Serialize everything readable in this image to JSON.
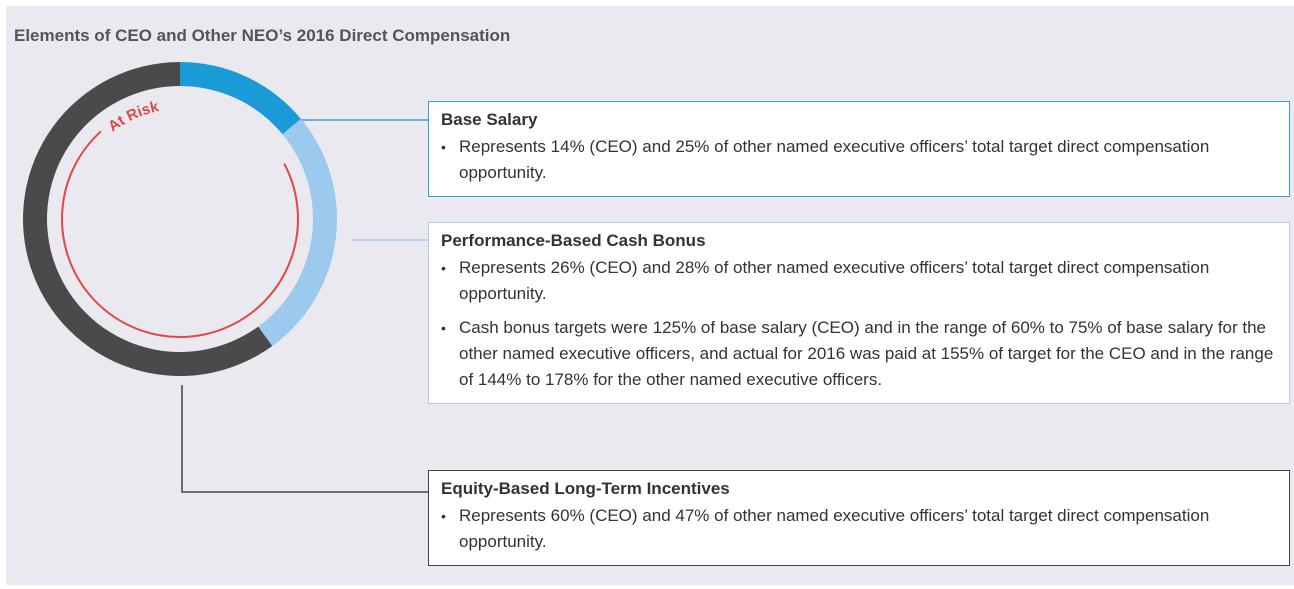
{
  "chart_data": {
    "type": "donut",
    "title": "Elements of CEO and Other NEO’s 2016 Direct Compensation",
    "categories": [
      "Base Salary",
      "Performance-Based Cash Bonus",
      "Equity-Based Long-Term Incentives"
    ],
    "values": [
      14,
      26,
      60
    ],
    "colors": [
      "#1a9ad6",
      "#9cc9ee",
      "#4a4a4a"
    ],
    "annotations": [
      "At Risk"
    ],
    "descriptions": [
      [
        "Represents 14% (CEO) and 25% of other named executive officers’ total target direct compensation opportunity."
      ],
      [
        "Represents 26% (CEO) and 28% of other named executive officers’ total target direct compensation opportunity.",
        "Cash bonus targets were 125% of base salary (CEO) and in the range of 60% to 75% of base salary for the other named executive officers, and actual for 2016 was paid at 155% of target for the CEO and in the range of 144% to 178% for the other named executive officers."
      ],
      [
        "Represents 60% (CEO) and 47% of other named executive officers’ total target direct compensation opportunity."
      ]
    ]
  }
}
